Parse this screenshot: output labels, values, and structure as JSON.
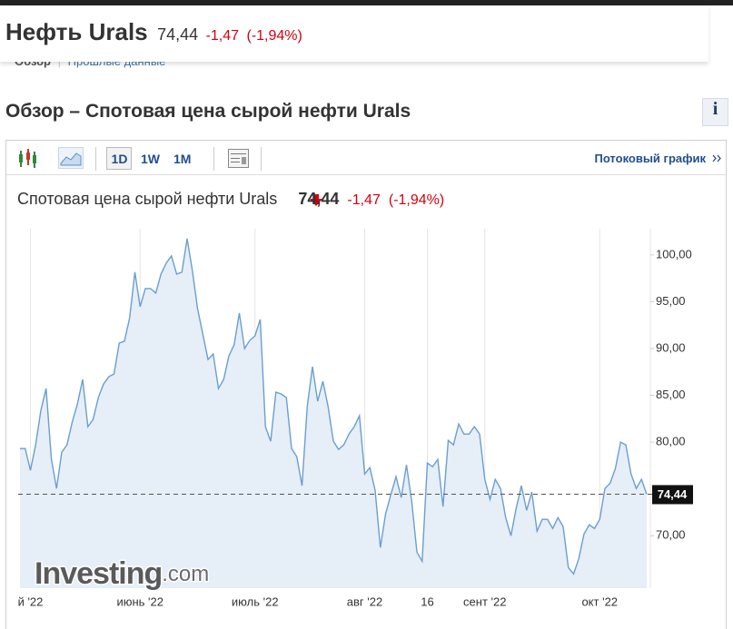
{
  "header": {
    "title": "Нефть Urals",
    "price": "74,44",
    "change": "-1,47",
    "change_pct": "(-1,94%)"
  },
  "tabs": [
    "Обзор",
    "Прошлые данные"
  ],
  "section_title": "Обзор – Спотовая цена сырой нефти Urals",
  "info_button": "i",
  "toolbar": {
    "periods": [
      "1D",
      "1W",
      "1M"
    ],
    "stream_link": "Потоковый график"
  },
  "chart_data": {
    "type": "area",
    "title": "Спотовая цена сырой нефти Urals",
    "price": "74,44",
    "change": "-1,47",
    "change_pct": "(-1,94%)",
    "watermark": "Investing",
    "watermark_suffix": ".com",
    "categories": [
      null,
      null,
      "й '22",
      null,
      null,
      null,
      null,
      null,
      null,
      null,
      null,
      null,
      null,
      null,
      null,
      null,
      null,
      null,
      null,
      null,
      null,
      null,
      null,
      "июнь '22",
      null,
      null,
      null,
      null,
      null,
      null,
      null,
      null,
      null,
      null,
      null,
      null,
      null,
      null,
      null,
      null,
      null,
      null,
      null,
      null,
      null,
      "июль '22",
      null,
      null,
      null,
      null,
      null,
      null,
      null,
      null,
      null,
      null,
      null,
      null,
      null,
      null,
      null,
      null,
      null,
      null,
      null,
      null,
      "авг '22",
      null,
      null,
      null,
      null,
      null,
      null,
      null,
      null,
      null,
      null,
      null,
      "16",
      null,
      null,
      null,
      null,
      null,
      null,
      null,
      null,
      null,
      null,
      "сент '22",
      null,
      null,
      null,
      null,
      null,
      null,
      null,
      null,
      null,
      null,
      null,
      null,
      null,
      null,
      null,
      null,
      null,
      null,
      null,
      null,
      null,
      "окт '22",
      null,
      null,
      null,
      null,
      null,
      null,
      null,
      null,
      null
    ],
    "series": [
      {
        "color": "#6a9fcf",
        "fill": "#e6eef7",
        "values": [
          79.32,
          79.32,
          76.99,
          79.71,
          83.4,
          85.73,
          78.25,
          75.05,
          78.93,
          79.71,
          82.14,
          84.08,
          86.7,
          81.65,
          82.43,
          84.76,
          86.21,
          86.99,
          87.28,
          90.58,
          90.78,
          93.3,
          98.16,
          94.47,
          96.41,
          96.41,
          95.92,
          97.96,
          99.13,
          99.9,
          97.96,
          98.16,
          101.75,
          98.35,
          94.27,
          91.55,
          88.83,
          89.42,
          85.73,
          86.7,
          89.22,
          90.39,
          93.79,
          90.0,
          90.87,
          91.36,
          93.11,
          81.65,
          80.1,
          85.34,
          85.15,
          84.76,
          79.32,
          78.45,
          75.34,
          83.79,
          88.06,
          84.37,
          86.5,
          83.79,
          80.1,
          79.22,
          79.71,
          80.87,
          81.65,
          82.82,
          76.6,
          77.28,
          74.85,
          68.74,
          72.33,
          74.37,
          76.31,
          74.08,
          77.57,
          73.69,
          68.25,
          67.28,
          77.77,
          77.38,
          78.16,
          73.11,
          80.19,
          79.71,
          81.94,
          80.87,
          80.87,
          81.65,
          80.87,
          76.02,
          73.88,
          76.02,
          75.05,
          71.94,
          70.0,
          72.91,
          75.34,
          72.72,
          74.66,
          70.49,
          71.75,
          71.75,
          70.78,
          71.94,
          70.97,
          66.6,
          65.92,
          67.57,
          70.19,
          71.17,
          70.78,
          71.75,
          75.05,
          75.63,
          77.18,
          80.0,
          79.71,
          76.6,
          75.05,
          76.02,
          74.44
        ]
      }
    ],
    "ylim": [
      64.4,
      102.8
    ],
    "yticks": [
      {
        "value": 70,
        "label": "70,00"
      },
      {
        "value": 80,
        "label": "80,00"
      },
      {
        "value": 85,
        "label": "85,00"
      },
      {
        "value": 90,
        "label": "90,00"
      },
      {
        "value": 95,
        "label": "95,00"
      },
      {
        "value": 100,
        "label": "100,00"
      }
    ],
    "grid": "vertical"
  }
}
